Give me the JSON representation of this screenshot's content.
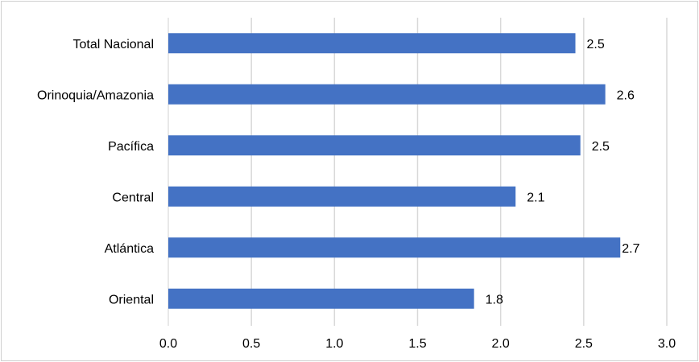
{
  "chart_data": {
    "type": "bar",
    "orientation": "horizontal",
    "categories": [
      "Total Nacional",
      "Orinoquia/Amazonia",
      "Pacífica",
      "Central",
      "Atlántica",
      "Oriental"
    ],
    "values": [
      2.45,
      2.63,
      2.48,
      2.09,
      2.72,
      1.84
    ],
    "data_labels": [
      "2.5",
      "2.6",
      "2.5",
      "2.1",
      "2.7",
      "1.8"
    ],
    "x_ticks": [
      "0.0",
      "0.5",
      "1.0",
      "1.5",
      "2.0",
      "2.5",
      "3.0"
    ],
    "xlim": [
      0,
      3
    ],
    "grid": true,
    "legend": "none",
    "colors": {
      "bar": "#4472C4",
      "grid": "#d9d9d9"
    }
  }
}
